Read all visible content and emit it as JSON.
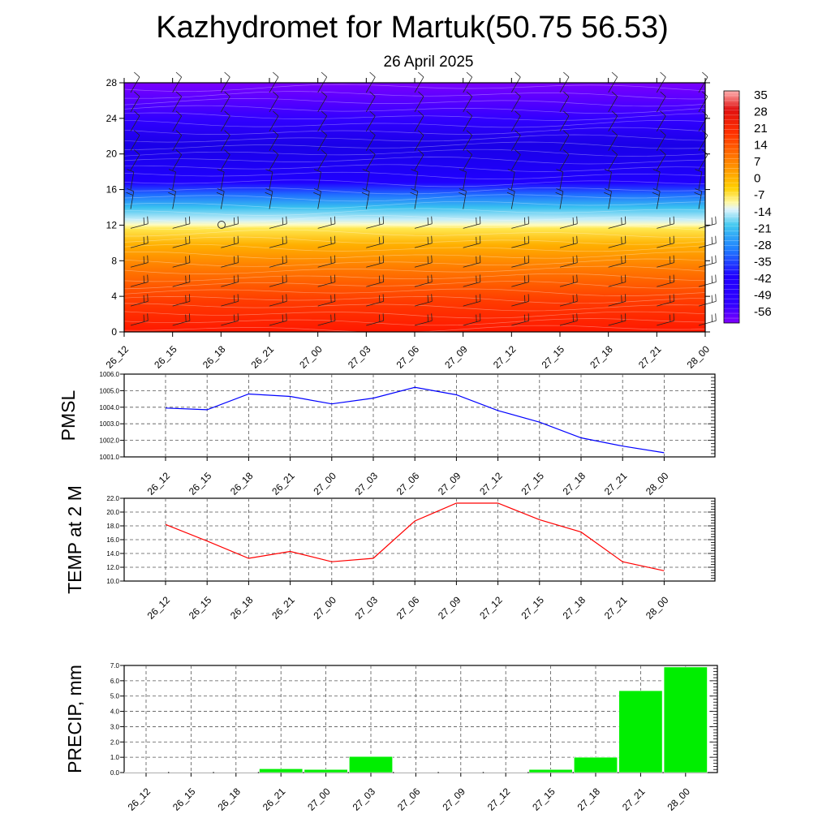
{
  "title": "Kazhydromet for Martuk(50.75 56.53)",
  "subtitle": "26 April 2025",
  "colors": {
    "pmsl_line": "#0000ff",
    "temp_line": "#ff0000",
    "precip_bar": "#00ee00"
  },
  "chart_data": [
    {
      "type": "heatmap",
      "name": "cross-section",
      "x": [
        "26_12",
        "26_15",
        "26_18",
        "26_21",
        "27_00",
        "27_03",
        "27_06",
        "27_09",
        "27_12",
        "27_15",
        "27_18",
        "27_21",
        "28_00"
      ],
      "y_ticks": [
        0,
        4,
        8,
        12,
        16,
        20,
        24,
        28
      ],
      "ylim": [
        0,
        28
      ],
      "colorbar_labels": [
        "35",
        "28",
        "21",
        "14",
        "7",
        "0",
        "-7",
        "-14",
        "-21",
        "-28",
        "-35",
        "-42",
        "-49",
        "-56"
      ],
      "colorbar_range": [
        -60,
        38
      ],
      "overlay": "wind barbs",
      "grid": false
    },
    {
      "type": "line",
      "name": "pmsl",
      "ylabel": "PMSL",
      "categories": [
        "26_12",
        "26_15",
        "26_18",
        "26_21",
        "27_00",
        "27_03",
        "27_06",
        "27_09",
        "27_12",
        "27_15",
        "27_18",
        "27_21",
        "28_00"
      ],
      "values": [
        1003.95,
        1003.85,
        1004.8,
        1004.65,
        1004.2,
        1004.55,
        1005.2,
        1004.75,
        1003.8,
        1003.1,
        1002.15,
        1001.65,
        1001.25
      ],
      "y_ticks": [
        "1006.0",
        "1005.0",
        "1004.0",
        "1003.0",
        "1002.0",
        "1001.0"
      ],
      "ylim": [
        1001.0,
        1006.0
      ],
      "grid": true
    },
    {
      "type": "line",
      "name": "temp",
      "ylabel": "TEMP at 2 M",
      "categories": [
        "26_12",
        "26_15",
        "26_18",
        "26_21",
        "27_00",
        "27_03",
        "27_06",
        "27_09",
        "27_12",
        "27_15",
        "27_18",
        "27_21",
        "28_00"
      ],
      "values": [
        18.2,
        15.8,
        13.3,
        14.3,
        12.8,
        13.3,
        18.7,
        21.3,
        21.3,
        18.9,
        17.1,
        12.8,
        11.5
      ],
      "y_ticks": [
        "22.0",
        "20.0",
        "18.0",
        "16.0",
        "14.0",
        "12.0",
        "10.0"
      ],
      "ylim": [
        10.0,
        22.0
      ],
      "grid": true
    },
    {
      "type": "bar",
      "name": "precip",
      "ylabel": "PRECIP, mm",
      "categories": [
        "26_12",
        "26_15",
        "26_18",
        "26_21",
        "27_00",
        "27_03",
        "27_06",
        "27_09",
        "27_12",
        "27_15",
        "27_18",
        "27_21",
        "28_00"
      ],
      "values": [
        0.0,
        0.0,
        0.0,
        0.25,
        0.2,
        1.05,
        0.02,
        0.0,
        0.0,
        0.2,
        1.0,
        5.35,
        6.9
      ],
      "y_ticks": [
        "7.0",
        "6.0",
        "5.0",
        "4.0",
        "3.0",
        "2.0",
        "1.0",
        "0.0"
      ],
      "ylim": [
        0.0,
        7.0
      ],
      "grid": true
    }
  ]
}
